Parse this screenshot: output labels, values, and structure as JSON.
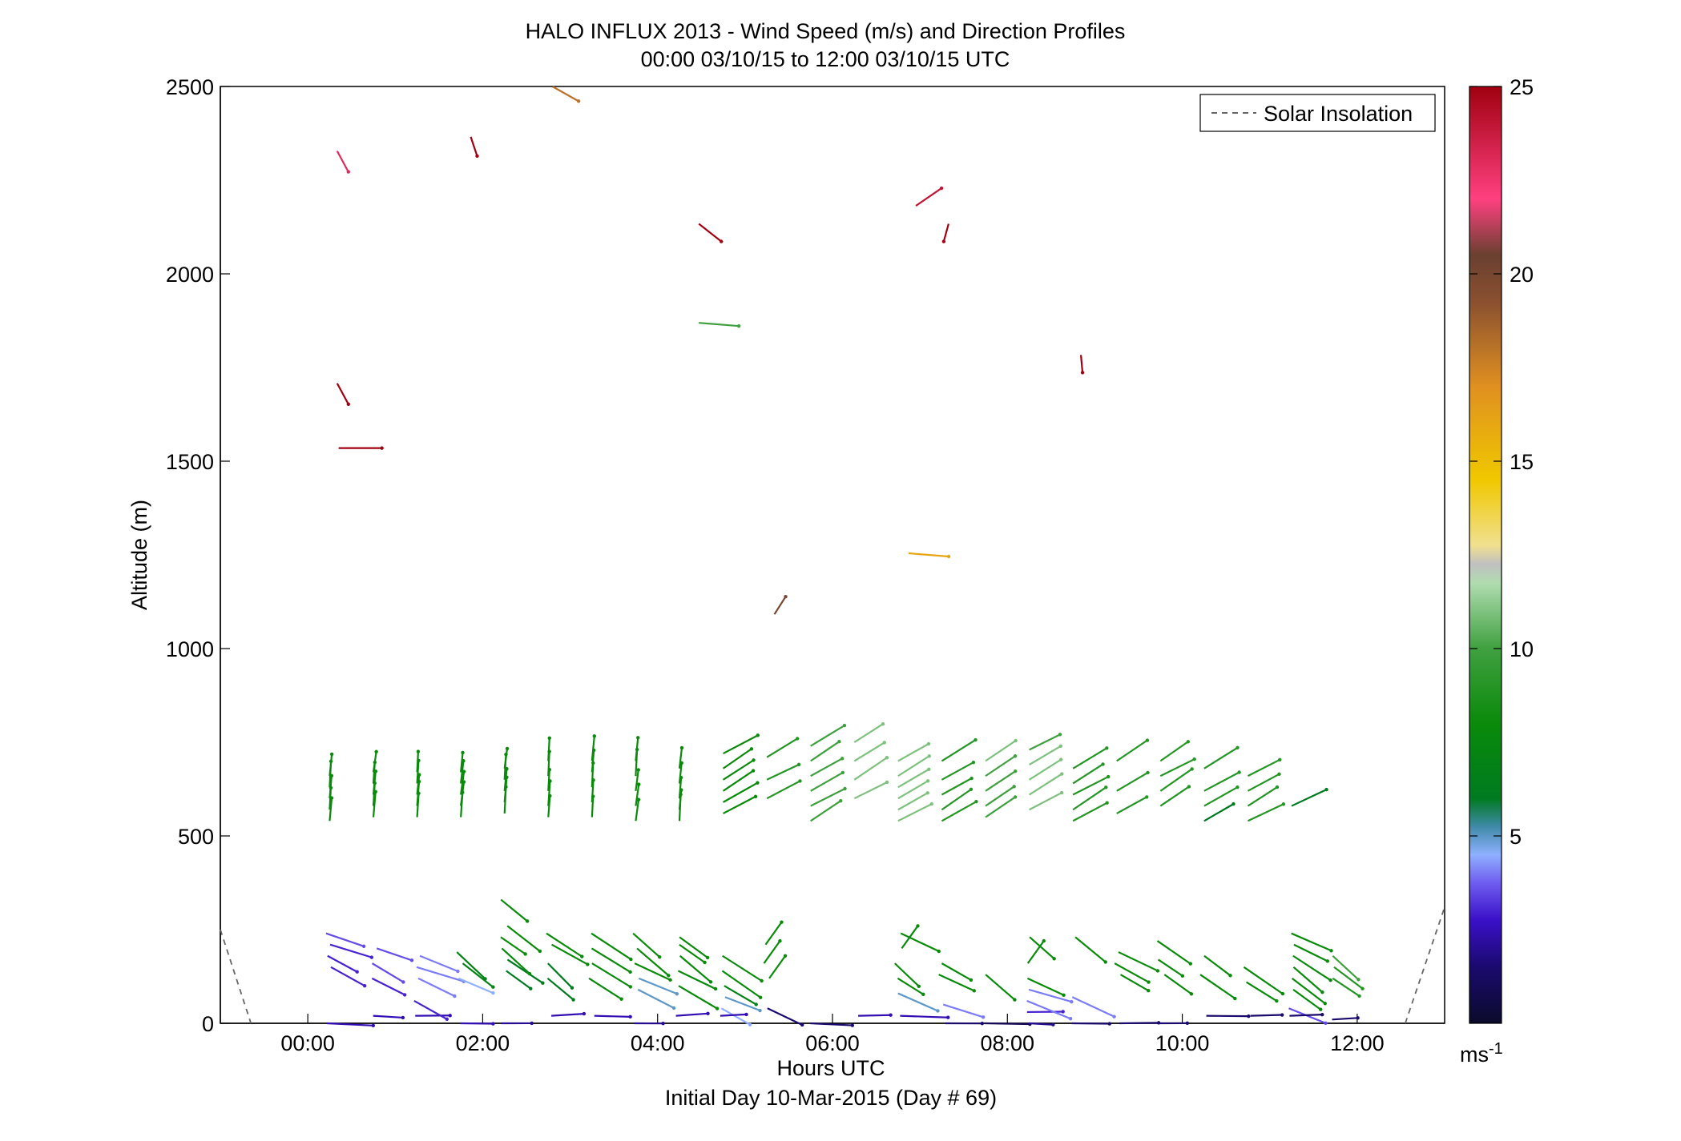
{
  "chart_data": {
    "type": "wind-barb-profile",
    "title": "HALO INFLUX 2013 - Wind Speed (m/s) and Direction Profiles",
    "subtitle": "00:00 03/10/15 to 12:00 03/10/15  UTC",
    "xlabel": "Hours UTC",
    "xlabel2": "Initial Day 10-Mar-2015 (Day # 69)",
    "ylabel": "Altitude (m)",
    "xlim": [
      -1,
      13
    ],
    "ylim": [
      0,
      2500
    ],
    "x_ticks": [
      {
        "value": 0,
        "label": "00:00"
      },
      {
        "value": 2,
        "label": "02:00"
      },
      {
        "value": 4,
        "label": "04:00"
      },
      {
        "value": 6,
        "label": "06:00"
      },
      {
        "value": 8,
        "label": "08:00"
      },
      {
        "value": 10,
        "label": "10:00"
      },
      {
        "value": 12,
        "label": "12:00"
      }
    ],
    "y_ticks": [
      {
        "value": 0,
        "label": "0"
      },
      {
        "value": 500,
        "label": "500"
      },
      {
        "value": 1000,
        "label": "1000"
      },
      {
        "value": 1500,
        "label": "1500"
      },
      {
        "value": 2000,
        "label": "2000"
      },
      {
        "value": 2500,
        "label": "2500"
      }
    ],
    "colorbar": {
      "label": "ms",
      "label_sup": "-1",
      "range": [
        0,
        25
      ],
      "ticks": [
        {
          "value": 5,
          "label": "5"
        },
        {
          "value": 10,
          "label": "10"
        },
        {
          "value": 15,
          "label": "15"
        },
        {
          "value": 20,
          "label": "20"
        },
        {
          "value": 25,
          "label": "25"
        }
      ]
    },
    "legend": {
      "position": "top-right",
      "entries": [
        {
          "name": "Solar Insolation",
          "style": "dashed",
          "color": "#666666"
        }
      ]
    },
    "grid": false,
    "solar_insolation": [
      [
        -1.0,
        250
      ],
      [
        -0.65,
        0
      ],
      [
        12.55,
        0
      ],
      [
        13.0,
        310
      ]
    ],
    "columns": [
      {
        "t": 0.25,
        "speeds": [
          [
            540,
            8
          ],
          [
            570,
            8
          ],
          [
            600,
            8
          ],
          [
            630,
            8
          ],
          [
            660,
            8
          ]
        ],
        "low": [
          [
            150,
            3
          ],
          [
            180,
            3
          ],
          [
            210,
            3
          ],
          [
            240,
            3.5
          ],
          [
            0,
            2.5
          ]
        ]
      },
      {
        "t": 0.75,
        "speeds": [
          [
            550,
            8
          ],
          [
            580,
            8
          ],
          [
            610,
            8
          ],
          [
            640,
            8
          ],
          [
            670,
            8
          ]
        ],
        "low": [
          [
            120,
            3
          ],
          [
            160,
            3.5
          ],
          [
            200,
            3.5
          ],
          [
            20,
            2.5
          ]
        ]
      },
      {
        "t": 1.25,
        "speeds": [
          [
            550,
            8
          ],
          [
            580,
            8
          ],
          [
            610,
            8
          ],
          [
            640,
            8
          ],
          [
            670,
            8
          ]
        ],
        "low": [
          [
            120,
            4
          ],
          [
            150,
            4
          ],
          [
            180,
            4
          ],
          [
            20,
            2.5
          ],
          [
            60,
            3
          ]
        ]
      },
      {
        "t": 1.75,
        "speeds": [
          [
            550,
            8
          ],
          [
            580,
            8
          ],
          [
            610,
            8
          ],
          [
            640,
            8
          ],
          [
            670,
            8
          ]
        ],
        "low": [
          [
            120,
            4.5
          ],
          [
            160,
            7
          ],
          [
            190,
            7
          ],
          [
            0,
            2.5
          ]
        ]
      },
      {
        "t": 2.25,
        "speeds": [
          [
            560,
            8
          ],
          [
            590,
            8
          ],
          [
            620,
            8
          ],
          [
            650,
            8
          ],
          [
            680,
            8
          ]
        ],
        "low": [
          [
            140,
            6
          ],
          [
            170,
            6
          ],
          [
            200,
            8
          ],
          [
            230,
            8
          ],
          [
            260,
            8
          ],
          [
            330,
            8
          ],
          [
            0,
            2
          ]
        ]
      },
      {
        "t": 2.75,
        "speeds": [
          [
            550,
            8
          ],
          [
            580,
            8
          ],
          [
            620,
            8
          ],
          [
            660,
            8
          ],
          [
            700,
            8
          ]
        ],
        "low": [
          [
            120,
            6
          ],
          [
            160,
            6
          ],
          [
            210,
            8
          ],
          [
            240,
            8
          ],
          [
            20,
            2.5
          ]
        ]
      },
      {
        "t": 3.25,
        "speeds": [
          [
            550,
            8
          ],
          [
            590,
            8
          ],
          [
            630,
            8
          ],
          [
            670,
            8
          ],
          [
            700,
            8
          ]
        ],
        "low": [
          [
            120,
            8
          ],
          [
            160,
            8
          ],
          [
            200,
            8
          ],
          [
            240,
            8
          ],
          [
            20,
            2.5
          ]
        ]
      },
      {
        "t": 3.75,
        "speeds": [
          [
            540,
            8
          ],
          [
            580,
            8
          ],
          [
            620,
            8
          ],
          [
            660,
            8
          ],
          [
            700,
            8
          ]
        ],
        "low": [
          [
            90,
            5
          ],
          [
            120,
            5
          ],
          [
            160,
            8
          ],
          [
            200,
            8
          ],
          [
            240,
            8
          ],
          [
            0,
            2
          ]
        ]
      },
      {
        "t": 4.25,
        "speeds": [
          [
            540,
            8
          ],
          [
            570,
            8
          ],
          [
            600,
            8
          ],
          [
            640,
            8
          ],
          [
            680,
            8
          ]
        ],
        "low": [
          [
            100,
            8
          ],
          [
            140,
            8
          ],
          [
            180,
            8
          ],
          [
            210,
            8
          ],
          [
            230,
            8
          ],
          [
            20,
            2.5
          ]
        ]
      },
      {
        "t": 4.75,
        "speeds": [
          [
            560,
            8
          ],
          [
            590,
            8
          ],
          [
            620,
            8
          ],
          [
            650,
            8
          ],
          [
            680,
            8
          ],
          [
            720,
            8
          ]
        ],
        "low": [
          [
            40,
            4.5
          ],
          [
            70,
            5
          ],
          [
            100,
            7
          ],
          [
            140,
            8
          ],
          [
            180,
            8
          ],
          [
            20,
            2.5
          ]
        ]
      },
      {
        "t": 5.25,
        "speeds": [
          [
            600,
            9
          ],
          [
            650,
            9
          ],
          [
            710,
            9
          ]
        ],
        "low": [
          [
            120,
            8
          ],
          [
            160,
            8
          ],
          [
            210,
            8
          ],
          [
            40,
            1.5
          ]
        ]
      },
      {
        "t": 5.75,
        "speeds": [
          [
            540,
            10
          ],
          [
            580,
            10
          ],
          [
            620,
            10
          ],
          [
            660,
            10
          ],
          [
            700,
            10
          ],
          [
            740,
            10
          ]
        ],
        "low": [
          [
            0,
            1.5
          ]
        ]
      },
      {
        "t": 6.25,
        "speeds": [
          [
            600,
            11
          ],
          [
            650,
            11
          ],
          [
            700,
            11
          ],
          [
            750,
            11
          ]
        ],
        "low": [
          [
            20,
            2.5
          ]
        ]
      },
      {
        "t": 6.75,
        "speeds": [
          [
            540,
            11
          ],
          [
            570,
            11
          ],
          [
            600,
            11
          ],
          [
            630,
            11
          ],
          [
            660,
            11
          ],
          [
            700,
            11
          ]
        ],
        "low": [
          [
            80,
            5
          ],
          [
            120,
            8
          ],
          [
            160,
            8
          ],
          [
            200,
            8
          ],
          [
            240,
            8
          ],
          [
            20,
            2.5
          ]
        ]
      },
      {
        "t": 7.25,
        "speeds": [
          [
            540,
            9
          ],
          [
            570,
            9
          ],
          [
            610,
            9
          ],
          [
            650,
            9
          ],
          [
            700,
            9
          ]
        ],
        "low": [
          [
            50,
            4
          ],
          [
            130,
            8
          ],
          [
            160,
            8
          ],
          [
            0,
            1.5
          ]
        ]
      },
      {
        "t": 7.75,
        "speeds": [
          [
            550,
            10
          ],
          [
            580,
            10
          ],
          [
            620,
            10
          ],
          [
            660,
            10
          ],
          [
            700,
            11
          ]
        ],
        "low": [
          [
            130,
            8
          ],
          [
            0,
            1
          ]
        ]
      },
      {
        "t": 8.25,
        "speeds": [
          [
            570,
            11
          ],
          [
            610,
            11
          ],
          [
            650,
            11
          ],
          [
            690,
            11
          ],
          [
            730,
            10
          ]
        ],
        "low": [
          [
            30,
            3
          ],
          [
            60,
            4
          ],
          [
            90,
            4
          ],
          [
            120,
            8
          ],
          [
            160,
            8
          ],
          [
            230,
            8
          ],
          [
            0,
            2
          ]
        ]
      },
      {
        "t": 8.75,
        "speeds": [
          [
            540,
            9
          ],
          [
            570,
            9
          ],
          [
            610,
            9
          ],
          [
            640,
            9
          ],
          [
            680,
            9
          ]
        ],
        "low": [
          [
            70,
            4
          ],
          [
            230,
            8
          ],
          [
            0,
            1.5
          ]
        ]
      },
      {
        "t": 9.25,
        "speeds": [
          [
            560,
            9
          ],
          [
            620,
            9
          ],
          [
            700,
            9
          ]
        ],
        "low": [
          [
            130,
            8
          ],
          [
            160,
            8
          ],
          [
            190,
            8
          ],
          [
            0,
            1.5
          ]
        ]
      },
      {
        "t": 9.75,
        "speeds": [
          [
            580,
            9
          ],
          [
            620,
            9
          ],
          [
            660,
            9
          ],
          [
            700,
            9
          ]
        ],
        "low": [
          [
            130,
            8
          ],
          [
            170,
            8
          ],
          [
            220,
            8
          ],
          [
            0,
            1.5
          ]
        ]
      },
      {
        "t": 10.25,
        "speeds": [
          [
            540,
            6
          ],
          [
            580,
            9
          ],
          [
            620,
            9
          ],
          [
            680,
            9
          ]
        ],
        "low": [
          [
            130,
            8
          ],
          [
            180,
            8
          ],
          [
            20,
            1.5
          ]
        ]
      },
      {
        "t": 10.75,
        "speeds": [
          [
            540,
            9
          ],
          [
            580,
            9
          ],
          [
            620,
            9
          ],
          [
            660,
            9
          ]
        ],
        "low": [
          [
            110,
            8
          ],
          [
            150,
            8
          ],
          [
            20,
            1.5
          ]
        ]
      },
      {
        "t": 11.25,
        "speeds": [
          [
            580,
            6
          ]
        ],
        "low": [
          [
            90,
            8
          ],
          [
            120,
            8
          ],
          [
            150,
            8
          ],
          [
            180,
            8
          ],
          [
            210,
            8
          ],
          [
            240,
            8
          ],
          [
            40,
            3.5
          ],
          [
            20,
            1.5
          ]
        ]
      },
      {
        "t": 11.75,
        "speeds": [],
        "low": [
          [
            120,
            9
          ],
          [
            150,
            9
          ],
          [
            180,
            10
          ],
          [
            10,
            1.5
          ]
        ]
      }
    ],
    "upper_points": [
      {
        "t": 0.4,
        "alt": 2300,
        "speed": 23
      },
      {
        "t": 0.4,
        "alt": 1680,
        "speed": 25
      },
      {
        "t": 0.6,
        "alt": 1535,
        "speed": 25
      },
      {
        "t": 1.9,
        "alt": 2340,
        "speed": 25
      },
      {
        "t": 2.95,
        "alt": 2480,
        "speed": 18
      },
      {
        "t": 4.6,
        "alt": 2110,
        "speed": 25
      },
      {
        "t": 4.7,
        "alt": 1865,
        "speed": 10
      },
      {
        "t": 5.4,
        "alt": 1115,
        "speed": 20
      },
      {
        "t": 7.1,
        "alt": 2205,
        "speed": 24
      },
      {
        "t": 7.3,
        "alt": 2110,
        "speed": 25
      },
      {
        "t": 7.1,
        "alt": 1250,
        "speed": 16
      },
      {
        "t": 8.85,
        "alt": 1760,
        "speed": 25
      }
    ]
  }
}
